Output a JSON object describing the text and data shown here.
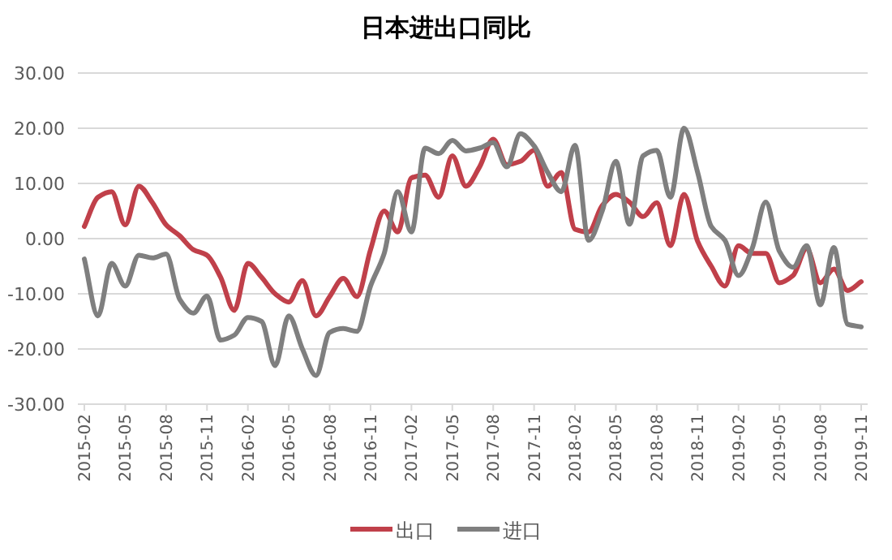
{
  "chart_data": {
    "type": "line",
    "title": "日本进出口同比",
    "categories": [
      "2015-02",
      null,
      null,
      "2015-05",
      null,
      null,
      "2015-08",
      null,
      null,
      "2015-11",
      null,
      null,
      "2016-02",
      null,
      null,
      "2016-05",
      null,
      null,
      "2016-08",
      null,
      null,
      "2016-11",
      null,
      null,
      "2017-02",
      null,
      null,
      "2017-05",
      null,
      null,
      "2017-08",
      null,
      null,
      "2017-11",
      null,
      null,
      "2018-02",
      null,
      null,
      "2018-05",
      null,
      null,
      "2018-08",
      null,
      null,
      "2018-11",
      null,
      null,
      "2019-02",
      null,
      null,
      "2019-05",
      null,
      null,
      "2019-08",
      null,
      null,
      "2019-11"
    ],
    "series": [
      {
        "name": "出口",
        "color": "#c0404a",
        "values": [
          2.2,
          7.5,
          8.5,
          2.5,
          9.5,
          6.5,
          2.5,
          0.5,
          -2,
          -3,
          -7,
          -13,
          -4.5,
          -7,
          -10,
          -11.5,
          -7.6,
          -14,
          -10.5,
          -7.2,
          -10.5,
          -2,
          5,
          1.2,
          11,
          11.5,
          7.5,
          15,
          9.5,
          13,
          18,
          13.4,
          14,
          16,
          9.5,
          12,
          1.7,
          1.2,
          6,
          8,
          6.6,
          4,
          6.5,
          -1.3,
          8,
          -0.5,
          -5,
          -8.6,
          -1.3,
          -2.7,
          -2.7,
          -8,
          -6.7,
          -1.8,
          -8,
          -5.5,
          -9.4,
          -7.8
        ]
      },
      {
        "name": "进口",
        "color": "#7f7f7f",
        "values": [
          -3.7,
          -14,
          -4.5,
          -8.6,
          -3,
          -3.5,
          -2.8,
          -11,
          -13.5,
          -10.4,
          -18.4,
          -17.5,
          -14.3,
          -15,
          -23,
          -14,
          -20,
          -24.8,
          -17,
          -16.3,
          -16.8,
          -8.6,
          -2.7,
          8.5,
          1.2,
          16.4,
          15.4,
          17.8,
          15.9,
          16.4,
          17.4,
          13,
          19,
          16.8,
          12,
          8.5,
          16.9,
          -0.3,
          5,
          14,
          2.6,
          15,
          16,
          7.5,
          20,
          12,
          2.2,
          -0.3,
          -6.7,
          -1.8,
          6.6,
          -2.3,
          -5.2,
          -1.3,
          -12,
          -1.6,
          -15.5,
          -16
        ]
      }
    ],
    "ylim": [
      -30,
      30
    ],
    "yticks": [
      {
        "value": -30,
        "label": "-30.00"
      },
      {
        "value": -20,
        "label": "-20.00"
      },
      {
        "value": -10,
        "label": "-10.00"
      },
      {
        "value": 0,
        "label": "0.00"
      },
      {
        "value": 10,
        "label": "10.00"
      },
      {
        "value": 20,
        "label": "20.00"
      },
      {
        "value": 30,
        "label": "30.00"
      }
    ],
    "grid": "y",
    "legend": "bottom",
    "marker": "none",
    "line_style": "solid"
  }
}
